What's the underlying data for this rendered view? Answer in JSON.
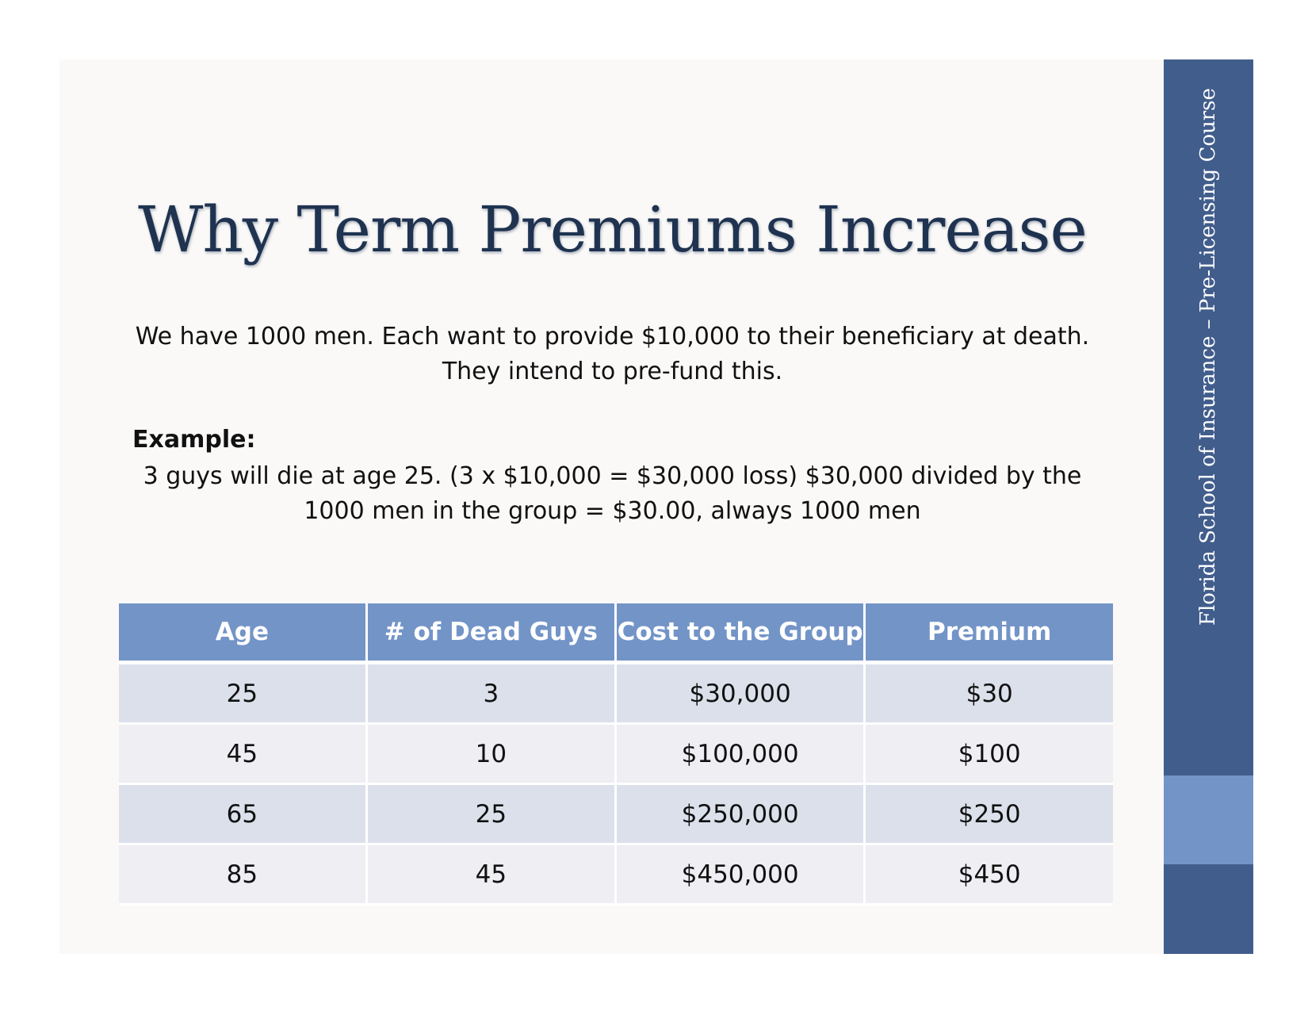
{
  "slide": {
    "title": "Why Term Premiums Increase",
    "intro_line1": "We have 1000 men. Each want to provide $10,000 to their beneficiary at death.",
    "intro_line2": "They intend to pre-fund this.",
    "example_label": "Example:",
    "example_line1": "3 guys will die at age 25. (3 x $10,000 = $30,000 loss) $30,000 divided by the",
    "example_line2": "1000 men in the group = $30.00, always 1000 men"
  },
  "table": {
    "headers": [
      "Age",
      "# of Dead Guys",
      "Cost to the Group",
      "Premium"
    ],
    "rows": [
      [
        "25",
        "3",
        "$30,000",
        "$30"
      ],
      [
        "45",
        "10",
        "$100,000",
        "$100"
      ],
      [
        "65",
        "25",
        "$250,000",
        "$250"
      ],
      [
        "85",
        "45",
        "$450,000",
        "$450"
      ]
    ]
  },
  "sidebar": {
    "text": "Florida School of Insurance – Pre-Licensing Course"
  },
  "colors": {
    "sidebar": "#415d8c",
    "accent": "#7394c7",
    "title": "#1f3350"
  }
}
